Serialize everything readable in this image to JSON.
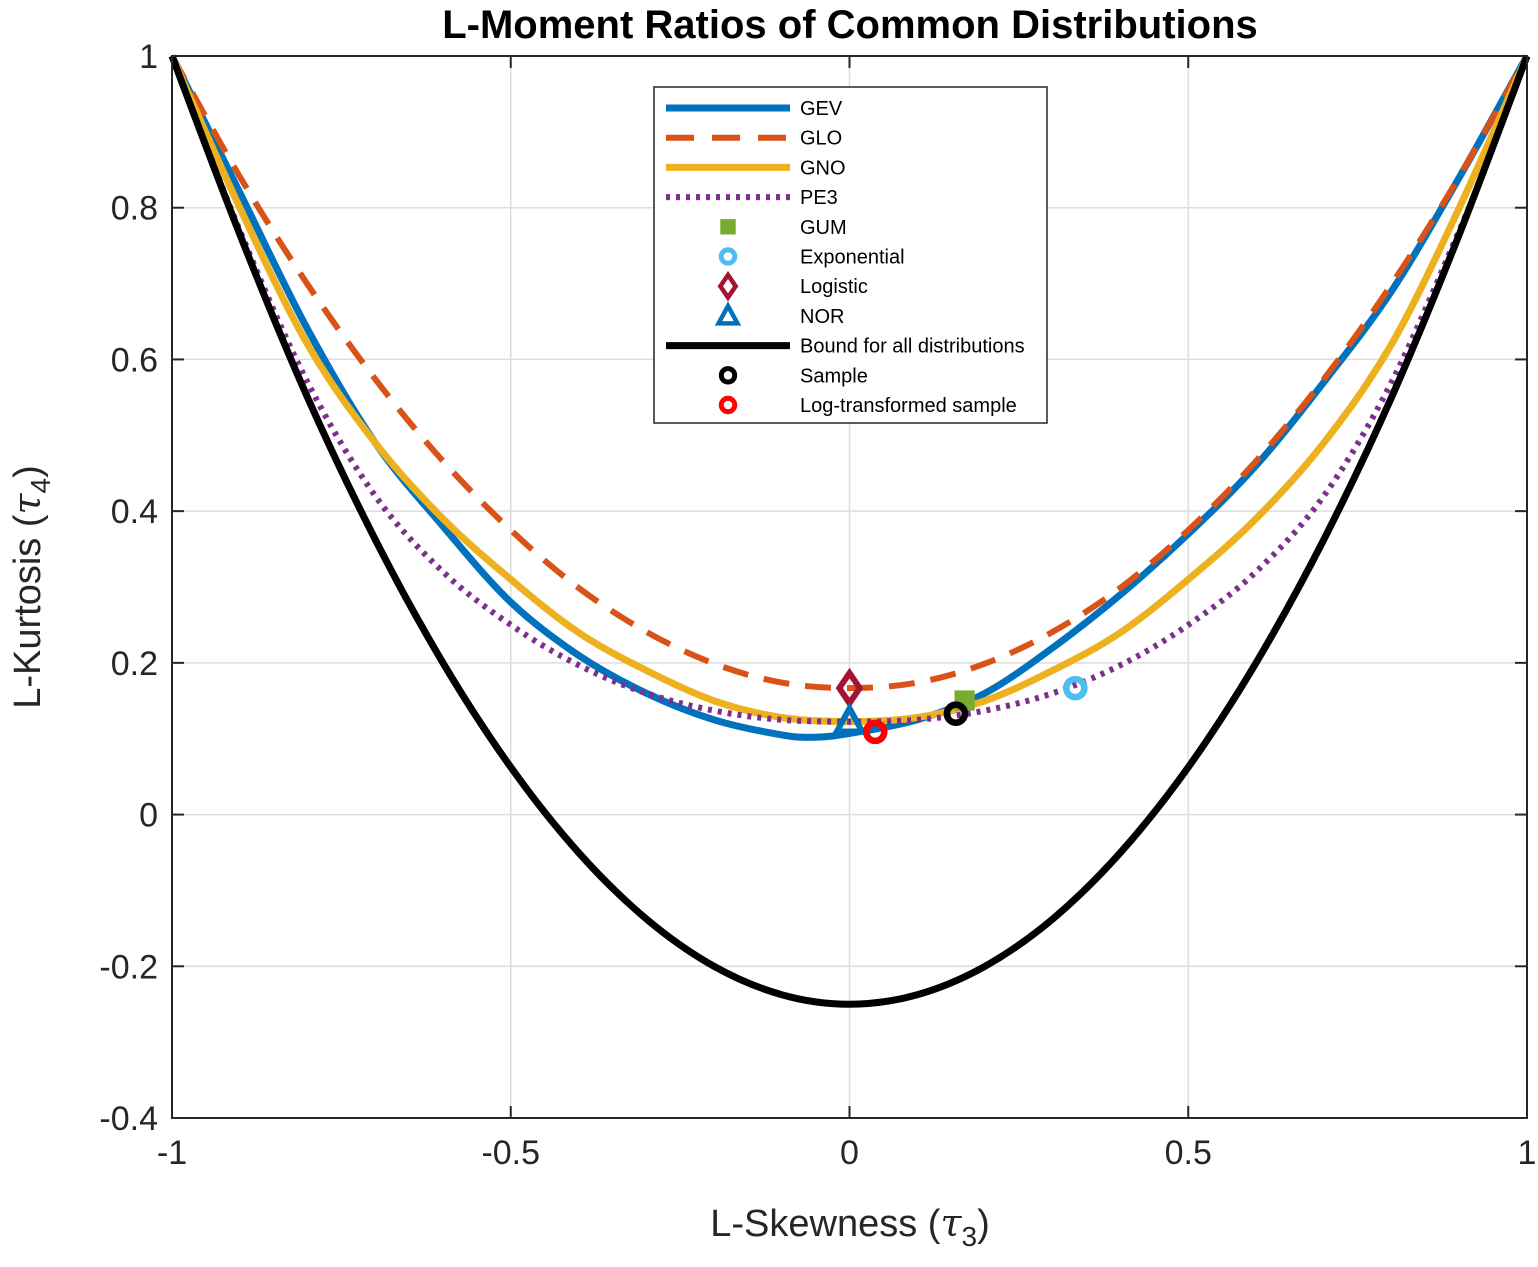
{
  "chart_data": {
    "type": "line",
    "title": "L-Moment Ratios of Common Distributions",
    "xlabel": {
      "text": "L-Skewness (",
      "symbol": "τ",
      "sub": "3",
      "close": ")"
    },
    "ylabel": {
      "text": "L-Kurtosis (",
      "symbol": "τ",
      "sub": "4",
      "close": ")"
    },
    "xlim": [
      -1,
      1
    ],
    "ylim": [
      -0.4,
      1
    ],
    "xticks": [
      -1,
      -0.5,
      0,
      0.5,
      1
    ],
    "xtick_labels": [
      "-1",
      "-0.5",
      "0",
      "0.5",
      "1"
    ],
    "yticks": [
      -0.4,
      -0.2,
      0,
      0.2,
      0.4,
      0.6,
      0.8,
      1
    ],
    "ytick_labels": [
      "-0.4",
      "-0.2",
      "0",
      "0.2",
      "0.4",
      "0.6",
      "0.8",
      "1"
    ],
    "grid": true,
    "legend_position": "top-center",
    "series": [
      {
        "name": "GEV",
        "kind": "line",
        "style": "solid",
        "color": "#0072BD",
        "x": [
          -1.0,
          -0.9,
          -0.8,
          -0.7,
          -0.6,
          -0.5,
          -0.4,
          -0.3,
          -0.2,
          -0.1,
          -0.05,
          0.0,
          0.1,
          0.2,
          0.3,
          0.4,
          0.5,
          0.6,
          0.7,
          0.8,
          0.9,
          1.0
        ],
        "y": [
          1.0,
          0.82,
          0.64,
          0.49,
          0.38,
          0.28,
          0.21,
          0.16,
          0.125,
          0.105,
          0.102,
          0.107,
          0.125,
          0.16,
          0.22,
          0.29,
          0.37,
          0.46,
          0.57,
          0.69,
          0.84,
          1.0
        ]
      },
      {
        "name": "GLO",
        "kind": "line",
        "style": "dashed",
        "color": "#D95319",
        "x": [
          -1.0,
          -0.9,
          -0.8,
          -0.7,
          -0.6,
          -0.5,
          -0.4,
          -0.3,
          -0.2,
          -0.1,
          0.0,
          0.1,
          0.2,
          0.3,
          0.4,
          0.5,
          0.6,
          0.7,
          0.8,
          0.9,
          1.0
        ],
        "y": [
          1.0,
          0.841,
          0.699,
          0.574,
          0.466,
          0.375,
          0.299,
          0.241,
          0.199,
          0.174,
          0.1667,
          0.174,
          0.199,
          0.241,
          0.299,
          0.375,
          0.466,
          0.574,
          0.699,
          0.841,
          1.0
        ]
      },
      {
        "name": "GNO",
        "kind": "line",
        "style": "solid",
        "color": "#EDB120",
        "x": [
          -1.0,
          -0.9,
          -0.8,
          -0.7,
          -0.6,
          -0.5,
          -0.4,
          -0.3,
          -0.2,
          -0.1,
          0.0,
          0.1,
          0.2,
          0.3,
          0.4,
          0.5,
          0.6,
          0.7,
          0.8,
          0.9,
          1.0
        ],
        "y": [
          1.0,
          0.8,
          0.62,
          0.49,
          0.39,
          0.31,
          0.24,
          0.19,
          0.15,
          0.128,
          0.1226,
          0.128,
          0.15,
          0.19,
          0.24,
          0.31,
          0.39,
          0.49,
          0.62,
          0.8,
          1.0
        ]
      },
      {
        "name": "PE3",
        "kind": "line",
        "style": "dotted",
        "color": "#7E2F8E",
        "x": [
          -1.0,
          -0.9,
          -0.8,
          -0.7,
          -0.6,
          -0.5,
          -0.4,
          -0.3,
          -0.2,
          -0.1,
          0.0,
          0.1,
          0.2,
          0.3,
          0.4,
          0.5,
          0.6,
          0.7,
          0.8,
          0.9,
          0.95,
          1.0
        ],
        "y": [
          1.0,
          0.77,
          0.57,
          0.42,
          0.32,
          0.25,
          0.197,
          0.16,
          0.137,
          0.125,
          0.1226,
          0.125,
          0.137,
          0.16,
          0.197,
          0.25,
          0.32,
          0.42,
          0.57,
          0.77,
          0.88,
          1.0
        ]
      },
      {
        "name": "GUM",
        "kind": "marker",
        "marker": "square",
        "color": "#77AC30",
        "x": [
          0.1699
        ],
        "y": [
          0.1504
        ]
      },
      {
        "name": "Exponential",
        "kind": "marker",
        "marker": "circle",
        "color": "#4DBEEE",
        "x": [
          0.3333
        ],
        "y": [
          0.1667
        ]
      },
      {
        "name": "Logistic",
        "kind": "marker",
        "marker": "diamond",
        "color": "#A2142F",
        "x": [
          0.0
        ],
        "y": [
          0.1667
        ]
      },
      {
        "name": "NOR",
        "kind": "marker",
        "marker": "triangle",
        "color": "#0072BD",
        "x": [
          0.0
        ],
        "y": [
          0.1226
        ]
      },
      {
        "name": "Bound for all distributions",
        "kind": "line",
        "style": "solid",
        "color": "#000000",
        "x": [
          -1.0,
          -0.9,
          -0.8,
          -0.7,
          -0.6,
          -0.5,
          -0.4,
          -0.3,
          -0.2,
          -0.1,
          0.0,
          0.1,
          0.2,
          0.3,
          0.4,
          0.5,
          0.6,
          0.7,
          0.8,
          0.9,
          1.0
        ],
        "y": [
          1.0,
          0.765,
          0.55,
          0.3625,
          0.2,
          0.0625,
          -0.05,
          -0.1375,
          -0.2,
          -0.2375,
          -0.25,
          -0.2375,
          -0.2,
          -0.1375,
          -0.05,
          0.0625,
          0.2,
          0.3625,
          0.55,
          0.765,
          1.0
        ]
      },
      {
        "name": "Sample",
        "kind": "marker",
        "marker": "circle",
        "color": "#000000",
        "x": [
          0.157
        ],
        "y": [
          0.133
        ]
      },
      {
        "name": "Log-transformed sample",
        "kind": "marker",
        "marker": "circle",
        "color": "#FF0000",
        "x": [
          0.038
        ],
        "y": [
          0.109
        ]
      }
    ]
  }
}
